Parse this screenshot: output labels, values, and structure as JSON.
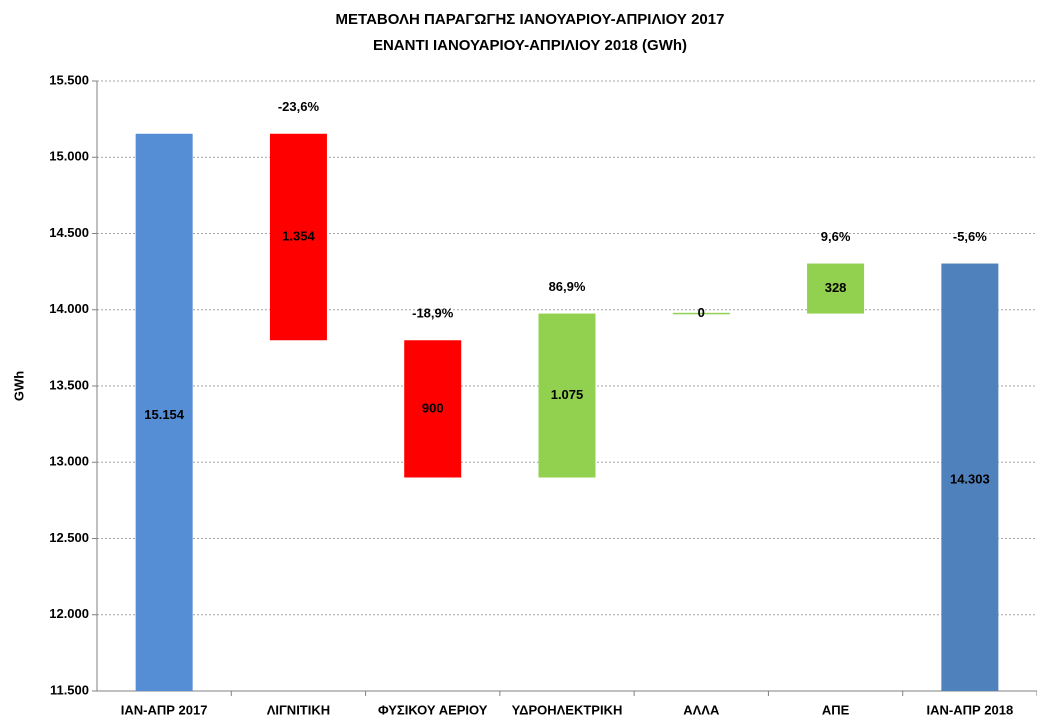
{
  "chart_data": {
    "type": "waterfall",
    "title": [
      "ΜΕΤΑΒΟΛΗ ΠΑΡΑΓΩΓΗΣ ΙΑΝΟΥΑΡΙΟΥ-ΑΠΡΙΛΙΟΥ 2017",
      "ΕΝΑΝΤΙ ΙΑΝΟΥΑΡΙΟΥ-ΑΠΡΙΛΙΟΥ 2018 (GWh)"
    ],
    "y_label": "GWh",
    "categories": [
      "ΙΑΝ-ΑΠΡ 2017",
      "ΛΙΓΝΙΤΙΚΗ",
      "ΦΥΣΙΚΟΥ ΑΕΡΙΟΥ",
      "ΥΔΡΟΗΛΕΚΤΡΙΚΗ",
      "ΑΛΛΑ",
      "ΑΠΕ",
      "ΙΑΝ-ΑΠΡ 2018"
    ],
    "measures": [
      "total",
      "relative",
      "relative",
      "relative",
      "relative",
      "relative",
      "total"
    ],
    "values": [
      15154,
      -1354,
      -900,
      1075,
      0,
      328,
      14303
    ],
    "value_labels": [
      "15.154",
      "1.354",
      "900",
      "1.075",
      "0",
      "328",
      "14.303"
    ],
    "percent_labels": [
      null,
      "-23,6%",
      "-18,9%",
      "86,9%",
      null,
      "9,6%",
      "-5,6%"
    ],
    "colors": [
      "#558ed5",
      "#ff0000",
      "#ff0000",
      "#92d050",
      "#92d050",
      "#92d050",
      "#4f81bd"
    ],
    "ylim": [
      11500,
      15500
    ],
    "yticks": [
      {
        "value": 11500,
        "label": "11.500"
      },
      {
        "value": 12000,
        "label": "12.000"
      },
      {
        "value": 12500,
        "label": "12.500"
      },
      {
        "value": 13000,
        "label": "13.000"
      },
      {
        "value": 13500,
        "label": "13.500"
      },
      {
        "value": 14000,
        "label": "14.000"
      },
      {
        "value": 14500,
        "label": "14.500"
      },
      {
        "value": 15000,
        "label": "15.000"
      },
      {
        "value": 15500,
        "label": "15.500"
      }
    ],
    "grid": true
  }
}
